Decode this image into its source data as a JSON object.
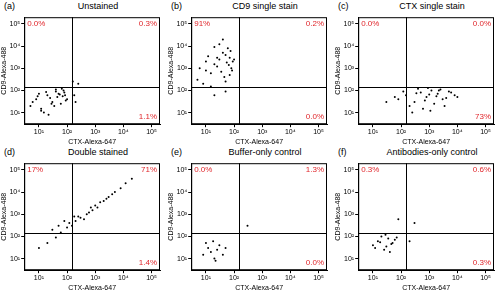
{
  "chart_data": [
    {
      "type": "scatter",
      "panel": "(a)",
      "title": "Unstained",
      "x_label": "CTX-Alexa-647",
      "y_label": "CD9-Alexa-488",
      "log": true,
      "grid": false,
      "color": "#000000",
      "xlim": [
        3,
        200000
      ],
      "ylim": [
        3,
        200000
      ],
      "xticks": [
        {
          "value": 10,
          "label": "10¹"
        },
        {
          "value": 100,
          "label": "10²"
        },
        {
          "value": 1000,
          "label": "10³"
        },
        {
          "value": 10000,
          "label": "10⁴"
        },
        {
          "value": 100000,
          "label": "10⁵"
        }
      ],
      "yticks": [
        {
          "value": 10,
          "label": "10¹"
        },
        {
          "value": 100,
          "label": "10²"
        },
        {
          "value": 1000,
          "label": "10³"
        },
        {
          "value": 10000,
          "label": "10⁴"
        },
        {
          "value": 100000,
          "label": "10⁵"
        }
      ],
      "gate": {
        "x": 150,
        "y": 150
      },
      "quadrants": {
        "upper_left": {
          "value": 0.0,
          "label": "0.0%"
        },
        "upper_right": {
          "value": 0.3,
          "label": "0.3%"
        },
        "lower_right": {
          "value": 1.1,
          "label": "1.1%"
        }
      },
      "x": [
        5,
        8,
        12,
        20,
        30,
        45,
        60,
        80,
        10,
        15,
        25,
        40,
        70,
        90,
        6,
        18,
        35,
        55,
        75,
        100,
        12,
        28,
        50,
        65,
        22,
        9,
        40,
        85,
        200,
        180,
        250,
        160
      ],
      "values": [
        20,
        40,
        15,
        60,
        30,
        50,
        25,
        80,
        70,
        10,
        45,
        90,
        55,
        35,
        30,
        85,
        20,
        65,
        100,
        40,
        12,
        25,
        70,
        120,
        8,
        55,
        110,
        60,
        30,
        60,
        200,
        250
      ]
    },
    {
      "type": "scatter",
      "panel": "(b)",
      "title": "CD9 single stain",
      "x_label": "CTX-Alexa-647",
      "y_label": "CD9-Alexa-488",
      "log": true,
      "grid": false,
      "color": "#000000",
      "xlim": [
        3,
        200000
      ],
      "ylim": [
        3,
        200000
      ],
      "xticks": [
        {
          "value": 10,
          "label": "10¹"
        },
        {
          "value": 100,
          "label": "10²"
        },
        {
          "value": 1000,
          "label": "10³"
        },
        {
          "value": 10000,
          "label": "10⁴"
        },
        {
          "value": 100000,
          "label": "10⁵"
        }
      ],
      "yticks": [
        {
          "value": 10,
          "label": "10¹"
        },
        {
          "value": 100,
          "label": "10²"
        },
        {
          "value": 1000,
          "label": "10³"
        },
        {
          "value": 10000,
          "label": "10⁴"
        },
        {
          "value": 100000,
          "label": "10⁵"
        }
      ],
      "gate": {
        "x": 150,
        "y": 150
      },
      "quadrants": {
        "upper_left": {
          "value": 91,
          "label": "91%"
        },
        "upper_right": {
          "value": 0.2,
          "label": "0.2%"
        },
        "lower_right": {
          "value": 0.0,
          "label": "0.0%"
        }
      },
      "x": [
        5,
        10,
        20,
        30,
        50,
        70,
        90,
        15,
        25,
        40,
        60,
        80,
        8,
        12,
        35,
        55,
        75,
        100,
        20,
        45,
        65,
        30,
        10,
        50,
        85,
        6,
        40,
        25,
        70,
        15,
        20,
        50
      ],
      "values": [
        300,
        800,
        1500,
        2500,
        4000,
        3000,
        2000,
        600,
        1200,
        5000,
        8000,
        1000,
        200,
        3500,
        700,
        1800,
        6000,
        2500,
        9000,
        400,
        1400,
        12000,
        2000,
        250,
        800,
        1000,
        20000,
        3000,
        500,
        150,
        60,
        90
      ]
    },
    {
      "type": "scatter",
      "panel": "(c)",
      "title": "CTX single stain",
      "x_label": "CTX-Alexa-647",
      "y_label": "CD9-Alexa-488",
      "log": true,
      "grid": false,
      "color": "#000000",
      "xlim": [
        3,
        200000
      ],
      "ylim": [
        3,
        200000
      ],
      "xticks": [
        {
          "value": 10,
          "label": "10¹"
        },
        {
          "value": 100,
          "label": "10²"
        },
        {
          "value": 1000,
          "label": "10³"
        },
        {
          "value": 10000,
          "label": "10⁴"
        },
        {
          "value": 100000,
          "label": "10⁵"
        }
      ],
      "yticks": [
        {
          "value": 10,
          "label": "10¹"
        },
        {
          "value": 100,
          "label": "10²"
        },
        {
          "value": 1000,
          "label": "10³"
        },
        {
          "value": 10000,
          "label": "10⁴"
        },
        {
          "value": 100000,
          "label": "10⁵"
        }
      ],
      "gate": {
        "x": 150,
        "y": 150
      },
      "quadrants": {
        "upper_left": {
          "value": 0.0,
          "label": "0.0%"
        },
        "upper_right": {
          "value": 0.0,
          "label": "0.0%"
        },
        "lower_right": {
          "value": 73,
          "label": "73%"
        }
      },
      "x": [
        80,
        150,
        300,
        500,
        800,
        1200,
        2000,
        3000,
        5000,
        8000,
        200,
        400,
        700,
        1000,
        1500,
        2500,
        4000,
        6000,
        250,
        600,
        900,
        1800,
        3500,
        10000,
        120,
        350,
        1100,
        2200,
        60,
        30
      ],
      "values": [
        40,
        60,
        30,
        80,
        50,
        100,
        70,
        40,
        90,
        60,
        20,
        120,
        35,
        65,
        25,
        110,
        45,
        80,
        10,
        15,
        130,
        55,
        20,
        50,
        90,
        75,
        12,
        100,
        50,
        30
      ]
    },
    {
      "type": "scatter",
      "panel": "(d)",
      "title": "Double stained",
      "x_label": "CTX-Alexa-647",
      "y_label": "CD9-Alexa-488",
      "log": true,
      "grid": false,
      "color": "#000000",
      "xlim": [
        3,
        200000
      ],
      "ylim": [
        3,
        200000
      ],
      "xticks": [
        {
          "value": 10,
          "label": "10¹"
        },
        {
          "value": 100,
          "label": "10²"
        },
        {
          "value": 1000,
          "label": "10³"
        },
        {
          "value": 10000,
          "label": "10⁴"
        },
        {
          "value": 100000,
          "label": "10⁵"
        }
      ],
      "yticks": [
        {
          "value": 10,
          "label": "10¹"
        },
        {
          "value": 100,
          "label": "10²"
        },
        {
          "value": 1000,
          "label": "10³"
        },
        {
          "value": 10000,
          "label": "10⁴"
        },
        {
          "value": 100000,
          "label": "10⁵"
        }
      ],
      "gate": {
        "x": 150,
        "y": 150
      },
      "quadrants": {
        "upper_left": {
          "value": 17,
          "label": "17%"
        },
        "upper_right": {
          "value": 71,
          "label": "71%"
        },
        "lower_right": {
          "value": 1.4,
          "label": "1.4%"
        }
      },
      "x": [
        10,
        20,
        40,
        60,
        100,
        150,
        200,
        300,
        500,
        800,
        1000,
        1500,
        2000,
        3000,
        5000,
        8000,
        12000,
        20000,
        250,
        400,
        700,
        1200,
        2500,
        4000,
        30,
        50,
        80,
        120,
        180,
        600
      ],
      "values": [
        30,
        50,
        90,
        150,
        250,
        300,
        500,
        700,
        1000,
        1500,
        2500,
        3500,
        4000,
        6000,
        10000,
        15000,
        25000,
        40000,
        800,
        600,
        2000,
        2000,
        5000,
        8000,
        200,
        300,
        500,
        400,
        800,
        1200
      ]
    },
    {
      "type": "scatter",
      "panel": "(e)",
      "title": "Buffer-only control",
      "x_label": "CTX-Alexa-647",
      "y_label": "CD9-Alexa-488",
      "log": true,
      "grid": false,
      "color": "#000000",
      "xlim": [
        3,
        200000
      ],
      "ylim": [
        3,
        200000
      ],
      "xticks": [
        {
          "value": 10,
          "label": "10¹"
        },
        {
          "value": 100,
          "label": "10²"
        },
        {
          "value": 1000,
          "label": "10³"
        },
        {
          "value": 10000,
          "label": "10⁴"
        },
        {
          "value": 100000,
          "label": "10⁵"
        }
      ],
      "yticks": [
        {
          "value": 10,
          "label": "10¹"
        },
        {
          "value": 100,
          "label": "10²"
        },
        {
          "value": 1000,
          "label": "10³"
        },
        {
          "value": 10000,
          "label": "10⁴"
        },
        {
          "value": 100000,
          "label": "10⁵"
        }
      ],
      "gate": {
        "x": 150,
        "y": 150
      },
      "quadrants": {
        "upper_left": {
          "value": 0.0,
          "label": "0.0%"
        },
        "upper_right": {
          "value": 1.3,
          "label": "1.3%"
        },
        "lower_right": {
          "value": 0.0,
          "label": "0.0%"
        }
      },
      "x": [
        8,
        12,
        20,
        30,
        15,
        25,
        10,
        40,
        18,
        50,
        22,
        300
      ],
      "values": [
        15,
        30,
        10,
        40,
        20,
        25,
        50,
        15,
        60,
        30,
        8,
        300
      ]
    },
    {
      "type": "scatter",
      "panel": "(f)",
      "title": "Antibodies-only control",
      "x_label": "CTX-Alexa-647",
      "y_label": "CD9-Alexa-488",
      "log": true,
      "grid": false,
      "color": "#000000",
      "xlim": [
        3,
        200000
      ],
      "ylim": [
        3,
        200000
      ],
      "xticks": [
        {
          "value": 10,
          "label": "10¹"
        },
        {
          "value": 100,
          "label": "10²"
        },
        {
          "value": 1000,
          "label": "10³"
        },
        {
          "value": 10000,
          "label": "10⁴"
        },
        {
          "value": 100000,
          "label": "10⁵"
        }
      ],
      "yticks": [
        {
          "value": 10,
          "label": "10¹"
        },
        {
          "value": 100,
          "label": "10²"
        },
        {
          "value": 1000,
          "label": "10³"
        },
        {
          "value": 10000,
          "label": "10⁴"
        },
        {
          "value": 100000,
          "label": "10⁵"
        }
      ],
      "gate": {
        "x": 150,
        "y": 150
      },
      "quadrants": {
        "upper_left": {
          "value": 0.3,
          "label": "0.3%"
        },
        "upper_right": {
          "value": 0.6,
          "label": "0.6%"
        },
        "lower_right": {
          "value": 0.3,
          "label": "0.3%"
        }
      },
      "x": [
        10,
        15,
        25,
        35,
        50,
        20,
        30,
        60,
        12,
        45,
        70,
        40,
        28,
        18,
        200,
        80,
        300
      ],
      "values": [
        40,
        60,
        25,
        80,
        50,
        100,
        35,
        70,
        30,
        45,
        90,
        20,
        120,
        55,
        60,
        600,
        400
      ]
    }
  ]
}
